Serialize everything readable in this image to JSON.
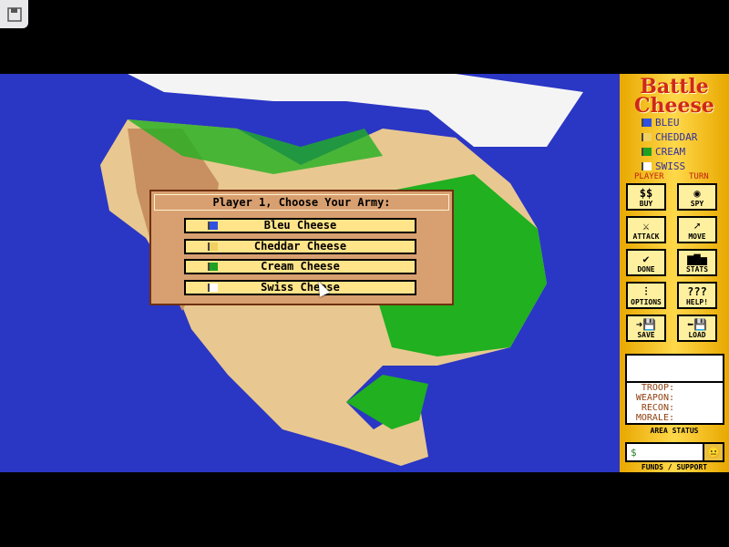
{
  "app": {
    "title_line1": "Battle",
    "title_line2": "Cheese"
  },
  "armies": [
    {
      "name": "BLEU",
      "color": "#3050e0"
    },
    {
      "name": "CHEDDAR",
      "color": "#f0d060"
    },
    {
      "name": "CREAM",
      "color": "#20a020"
    },
    {
      "name": "SWISS",
      "color": "#ffffff"
    }
  ],
  "turn_labels": {
    "player": "PLAYER",
    "turn": "TURN"
  },
  "buttons": [
    {
      "label": "BUY",
      "icon": "money-icon",
      "glyph": "$$"
    },
    {
      "label": "SPY",
      "icon": "eye-icon",
      "glyph": "◉"
    },
    {
      "label": "ATTACK",
      "icon": "sword-icon",
      "glyph": "⚔"
    },
    {
      "label": "MOVE",
      "icon": "move-icon",
      "glyph": "➚"
    },
    {
      "label": "DONE",
      "icon": "checkmark-icon",
      "glyph": "✔"
    },
    {
      "label": "STATS",
      "icon": "bar-chart-icon",
      "glyph": "▆▇▅"
    },
    {
      "label": "OPTIONS",
      "icon": "sliders-icon",
      "glyph": "⫶"
    },
    {
      "label": "HELP!",
      "icon": "question-icon",
      "glyph": "???"
    },
    {
      "label": "SAVE",
      "icon": "save-disk-icon",
      "glyph": "➜💾"
    },
    {
      "label": "LOAD",
      "icon": "load-disk-icon",
      "glyph": "⬅💾"
    }
  ],
  "status": {
    "troop": "TROOP:",
    "weapon": "WEAPON:",
    "recon": "RECON:",
    "morale": "MORALE:",
    "caption": "AREA STATUS"
  },
  "funds": {
    "value": "$",
    "caption": "FUNDS / SUPPORT"
  },
  "dialog": {
    "title": "Player 1, Choose Your Army:",
    "options": [
      "Bleu Cheese",
      "Cheddar Cheese",
      "Cream Cheese",
      "Swiss Cheese"
    ]
  }
}
